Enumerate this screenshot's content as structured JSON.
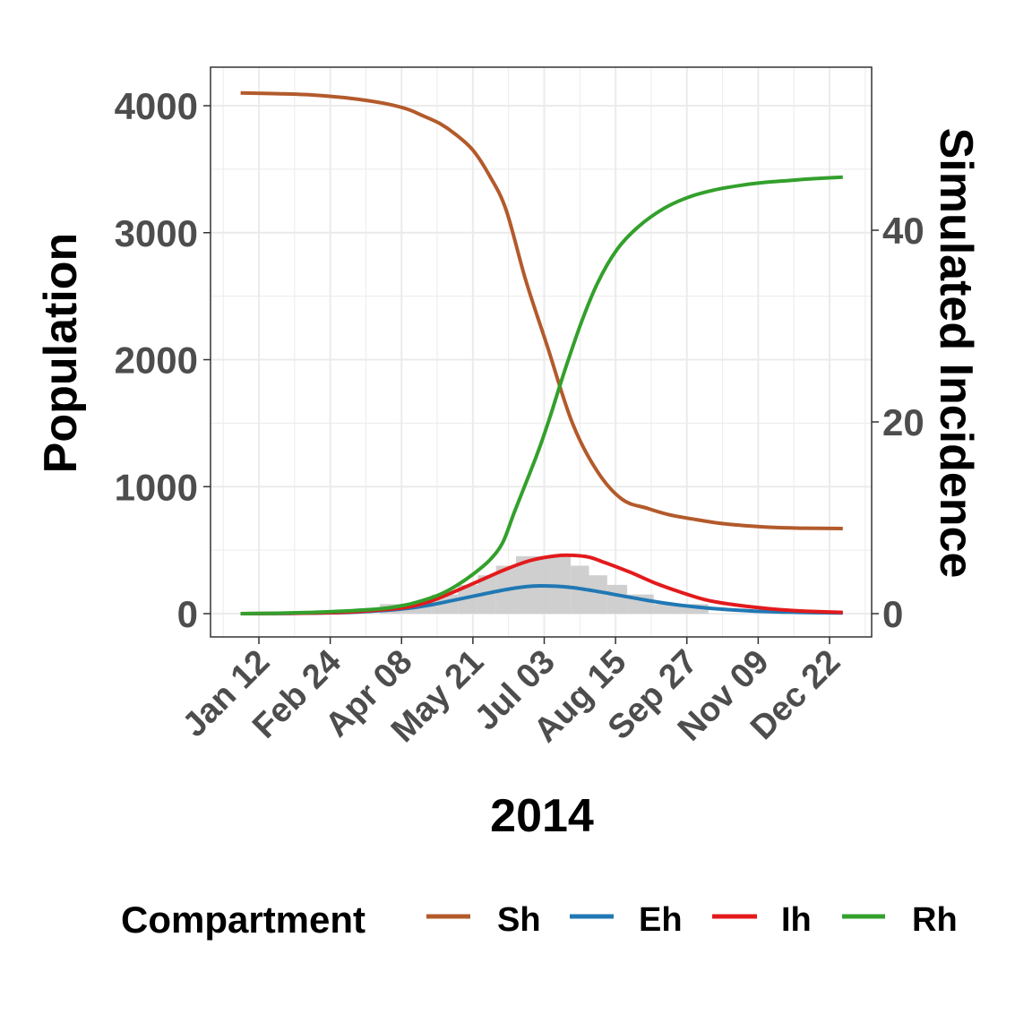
{
  "chart_data": {
    "type": "line",
    "title": "",
    "xlabel": "2014",
    "ylabel": "Population",
    "ylabel_right": "Simulated Incidence",
    "x_unit": "day of year 2014 (0 = Jan 01)",
    "x_ticks": [
      {
        "label": "Jan 12",
        "day": 11
      },
      {
        "label": "Feb 24",
        "day": 54
      },
      {
        "label": "Apr 08",
        "day": 97
      },
      {
        "label": "May 21",
        "day": 140
      },
      {
        "label": "Jul 03",
        "day": 183
      },
      {
        "label": "Aug 15",
        "day": 226
      },
      {
        "label": "Sep 27",
        "day": 269
      },
      {
        "label": "Nov 09",
        "day": 312
      },
      {
        "label": "Dec 22",
        "day": 355
      }
    ],
    "xlim": [
      -18,
      380
    ],
    "ylim": [
      -190,
      4300
    ],
    "y_ticks": [
      0,
      1000,
      2000,
      3000,
      4000
    ],
    "y_right_ticks": [
      0,
      20,
      40
    ],
    "y_right_scale": "Population = Incidence × 70.85",
    "grid": true,
    "legend": {
      "title": "Compartment",
      "position": "bottom"
    },
    "series": [
      {
        "name": "Sh",
        "color": "#b35a2b",
        "points": [
          [
            0,
            4100
          ],
          [
            20,
            4095
          ],
          [
            43,
            4085
          ],
          [
            65,
            4060
          ],
          [
            86,
            4020
          ],
          [
            100,
            3975
          ],
          [
            110,
            3920
          ],
          [
            120,
            3860
          ],
          [
            129,
            3780
          ],
          [
            140,
            3650
          ],
          [
            150,
            3450
          ],
          [
            160,
            3180
          ],
          [
            172,
            2620
          ],
          [
            185,
            2100
          ],
          [
            200,
            1500
          ],
          [
            215,
            1120
          ],
          [
            230,
            900
          ],
          [
            245,
            830
          ],
          [
            258,
            780
          ],
          [
            275,
            740
          ],
          [
            290,
            710
          ],
          [
            305,
            692
          ],
          [
            320,
            680
          ],
          [
            340,
            673
          ],
          [
            363,
            670
          ]
        ]
      },
      {
        "name": "Eh",
        "color": "#2078b4",
        "points": [
          [
            0,
            0
          ],
          [
            30,
            2
          ],
          [
            60,
            8
          ],
          [
            80,
            20
          ],
          [
            100,
            40
          ],
          [
            115,
            70
          ],
          [
            130,
            110
          ],
          [
            145,
            150
          ],
          [
            160,
            190
          ],
          [
            172,
            212
          ],
          [
            180,
            219
          ],
          [
            190,
            216
          ],
          [
            200,
            205
          ],
          [
            215,
            175
          ],
          [
            230,
            140
          ],
          [
            245,
            105
          ],
          [
            260,
            75
          ],
          [
            275,
            52
          ],
          [
            290,
            35
          ],
          [
            310,
            20
          ],
          [
            330,
            12
          ],
          [
            345,
            8
          ],
          [
            363,
            5
          ]
        ]
      },
      {
        "name": "Ih",
        "color": "#e31a1c",
        "points": [
          [
            0,
            0
          ],
          [
            30,
            3
          ],
          [
            60,
            10
          ],
          [
            80,
            25
          ],
          [
            100,
            50
          ],
          [
            115,
            100
          ],
          [
            130,
            180
          ],
          [
            145,
            265
          ],
          [
            160,
            350
          ],
          [
            175,
            420
          ],
          [
            190,
            455
          ],
          [
            200,
            459
          ],
          [
            210,
            445
          ],
          [
            220,
            400
          ],
          [
            235,
            325
          ],
          [
            250,
            240
          ],
          [
            265,
            170
          ],
          [
            280,
            110
          ],
          [
            295,
            75
          ],
          [
            310,
            50
          ],
          [
            325,
            32
          ],
          [
            340,
            20
          ],
          [
            363,
            10
          ]
        ]
      },
      {
        "name": "Rh",
        "color": "#33a02c",
        "points": [
          [
            0,
            0
          ],
          [
            20,
            3
          ],
          [
            43,
            10
          ],
          [
            65,
            22
          ],
          [
            86,
            40
          ],
          [
            100,
            70
          ],
          [
            110,
            105
          ],
          [
            120,
            150
          ],
          [
            130,
            220
          ],
          [
            140,
            310
          ],
          [
            150,
            420
          ],
          [
            158,
            560
          ],
          [
            165,
            800
          ],
          [
            172,
            1030
          ],
          [
            180,
            1300
          ],
          [
            187,
            1570
          ],
          [
            195,
            1900
          ],
          [
            205,
            2280
          ],
          [
            215,
            2600
          ],
          [
            227,
            2870
          ],
          [
            240,
            3050
          ],
          [
            255,
            3190
          ],
          [
            270,
            3280
          ],
          [
            285,
            3335
          ],
          [
            300,
            3370
          ],
          [
            315,
            3395
          ],
          [
            330,
            3410
          ],
          [
            345,
            3425
          ],
          [
            363,
            3437
          ]
        ]
      }
    ],
    "bars": {
      "name": "Simulated Incidence",
      "color": "#cccccc",
      "axis": "right",
      "bins": [
        {
          "start": 84,
          "end": 115,
          "value": 1
        },
        {
          "start": 115,
          "end": 131,
          "value": 2
        },
        {
          "start": 131,
          "end": 143,
          "value": 3
        },
        {
          "start": 143,
          "end": 154,
          "value": 4
        },
        {
          "start": 154,
          "end": 166,
          "value": 5
        },
        {
          "start": 166,
          "end": 199,
          "value": 6
        },
        {
          "start": 199,
          "end": 210,
          "value": 5
        },
        {
          "start": 210,
          "end": 221,
          "value": 4
        },
        {
          "start": 221,
          "end": 233,
          "value": 3
        },
        {
          "start": 233,
          "end": 249,
          "value": 2
        },
        {
          "start": 249,
          "end": 282,
          "value": 1
        }
      ]
    }
  },
  "labels": {
    "x_title": "2014",
    "y_title": "Population",
    "y_right_title": "Simulated Incidence",
    "legend_title": "Compartment",
    "legend_items": [
      "Sh",
      "Eh",
      "Ih",
      "Rh"
    ],
    "y_ticks": [
      "0",
      "1000",
      "2000",
      "3000",
      "4000"
    ],
    "y_right_ticks": [
      "0",
      "20",
      "40"
    ],
    "x_ticks": [
      "Jan 12",
      "Feb 24",
      "Apr 08",
      "May 21",
      "Jul 03",
      "Aug 15",
      "Sep 27",
      "Nov 09",
      "Dec 22"
    ]
  }
}
